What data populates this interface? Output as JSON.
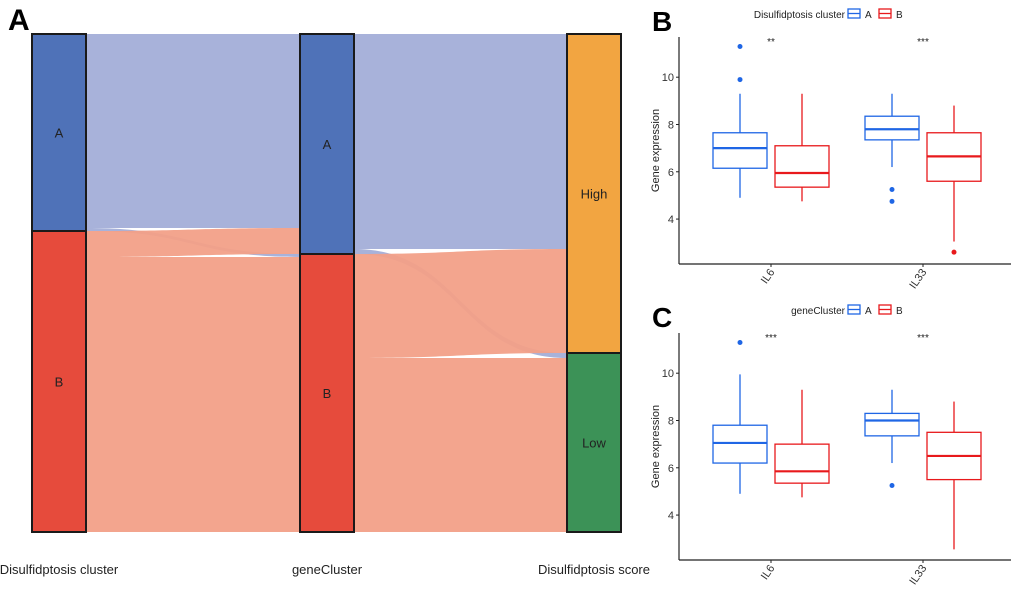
{
  "chart_data": [
    {
      "panel_label": "A",
      "type": "sankey",
      "axes": [
        "Disulfidptosis cluster",
        "geneCluster",
        "Disulfidptosis score"
      ],
      "nodes": [
        {
          "id": "dA",
          "axis": 0,
          "label": "A",
          "color": "#4f72b8"
        },
        {
          "id": "dB",
          "axis": 0,
          "label": "B",
          "color": "#e64b3c"
        },
        {
          "id": "gA",
          "axis": 1,
          "label": "A",
          "color": "#4f72b8"
        },
        {
          "id": "gB",
          "axis": 1,
          "label": "B",
          "color": "#e64b3c"
        },
        {
          "id": "sH",
          "axis": 2,
          "label": "High",
          "color": "#f2a541"
        },
        {
          "id": "sL",
          "axis": 2,
          "label": "Low",
          "color": "#3c9257"
        }
      ],
      "flows": [
        {
          "from": "dA",
          "to": "gA",
          "value": 194,
          "color": "#a3aed8"
        },
        {
          "from": "dA",
          "to": "gB",
          "value": 3,
          "color": "#a3aed8"
        },
        {
          "from": "dB",
          "to": "gA",
          "value": 26,
          "color": "#f2a088"
        },
        {
          "from": "dB",
          "to": "gB",
          "value": 275,
          "color": "#f2a088"
        },
        {
          "from": "gA",
          "to": "sH",
          "value": 215,
          "color": "#a3aed8"
        },
        {
          "from": "gA",
          "to": "sL",
          "value": 5,
          "color": "#a3aed8"
        },
        {
          "from": "gB",
          "to": "sH",
          "value": 104,
          "color": "#f2a088"
        },
        {
          "from": "gB",
          "to": "sL",
          "value": 174,
          "color": "#f2a088"
        }
      ]
    },
    {
      "panel_label": "B",
      "type": "boxplot",
      "legend_title": "Disulfidptosis cluster",
      "legend": [
        {
          "name": "A",
          "color": "#1f66e5"
        },
        {
          "name": "B",
          "color": "#e8191c"
        }
      ],
      "ylabel": "Gene expression",
      "yticks": [
        4,
        6,
        8,
        10
      ],
      "ylim": [
        2.1,
        11.7
      ],
      "categories": [
        "IL6",
        "IL33"
      ],
      "significance": [
        "**",
        "***"
      ],
      "series": [
        {
          "name": "A",
          "boxes": [
            {
              "min": 4.9,
              "q1": 6.15,
              "median": 7.0,
              "q3": 7.65,
              "max": 9.3,
              "outliers": [
                11.3,
                9.9
              ]
            },
            {
              "min": 6.2,
              "q1": 7.35,
              "median": 7.8,
              "q3": 8.35,
              "max": 9.3,
              "outliers": [
                5.25,
                4.75
              ]
            }
          ]
        },
        {
          "name": "B",
          "boxes": [
            {
              "min": 4.75,
              "q1": 5.35,
              "median": 5.95,
              "q3": 7.1,
              "max": 9.3,
              "outliers": []
            },
            {
              "min": 3.05,
              "q1": 5.6,
              "median": 6.65,
              "q3": 7.65,
              "max": 8.8,
              "outliers": [
                2.6
              ]
            }
          ]
        }
      ]
    },
    {
      "panel_label": "C",
      "type": "boxplot",
      "legend_title": "geneCluster",
      "legend": [
        {
          "name": "A",
          "color": "#1f66e5"
        },
        {
          "name": "B",
          "color": "#e8191c"
        }
      ],
      "ylabel": "Gene expression",
      "yticks": [
        4,
        6,
        8,
        10
      ],
      "ylim": [
        2.1,
        11.7
      ],
      "categories": [
        "IL6",
        "IL33"
      ],
      "significance": [
        "***",
        "***"
      ],
      "series": [
        {
          "name": "A",
          "boxes": [
            {
              "min": 4.9,
              "q1": 6.2,
              "median": 7.05,
              "q3": 7.8,
              "max": 9.95,
              "outliers": [
                11.3
              ]
            },
            {
              "min": 6.2,
              "q1": 7.35,
              "median": 8.0,
              "q3": 8.3,
              "max": 9.3,
              "outliers": [
                5.25
              ]
            }
          ]
        },
        {
          "name": "B",
          "boxes": [
            {
              "min": 4.75,
              "q1": 5.35,
              "median": 5.85,
              "q3": 7.0,
              "max": 9.3,
              "outliers": []
            },
            {
              "min": 2.55,
              "q1": 5.5,
              "median": 6.5,
              "q3": 7.5,
              "max": 8.8,
              "outliers": []
            }
          ]
        }
      ]
    }
  ]
}
